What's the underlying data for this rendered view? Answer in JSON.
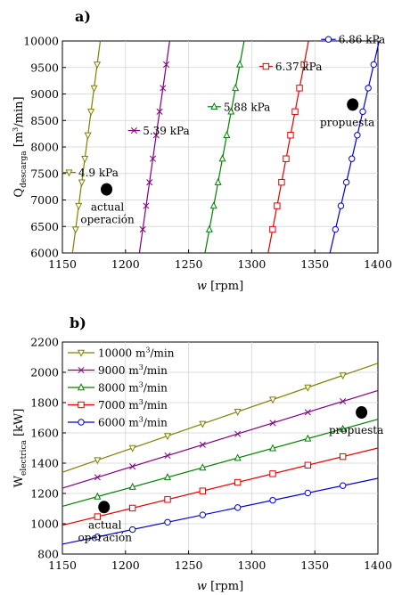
{
  "figure": {
    "panels": [
      "a)",
      "b)"
    ]
  },
  "chart_data": [
    {
      "id": "a",
      "type": "line",
      "panel_label": "a)",
      "xlabel": "w [rpm]",
      "ylabel": "Q_descarga [m³/min]",
      "ylabel_main": "Q",
      "ylabel_sub": "descarga",
      "ylabel_unit": "[m",
      "ylabel_sup": "3",
      "ylabel_unit_end": "/min]",
      "xlim": [
        1150,
        1400
      ],
      "ylim": [
        6000,
        10000
      ],
      "x_ticks": [
        1150,
        1200,
        1250,
        1300,
        1350,
        1400
      ],
      "y_ticks": [
        6000,
        6500,
        7000,
        7500,
        8000,
        8500,
        9000,
        9500,
        10000
      ],
      "grid": true,
      "series": [
        {
          "name": "4.9 kPa",
          "color": "#808000",
          "marker": "triangle-down",
          "x": [
            1158,
            1180
          ],
          "y": [
            6000,
            10000
          ]
        },
        {
          "name": "5.39 kPa",
          "color": "#800080",
          "marker": "x",
          "x": [
            1211,
            1235
          ],
          "y": [
            6000,
            10000
          ]
        },
        {
          "name": "5.88 kPa",
          "color": "#008000",
          "marker": "triangle-up",
          "x": [
            1263,
            1294
          ],
          "y": [
            6000,
            10000
          ]
        },
        {
          "name": "6.37 kPa",
          "color": "#e00000",
          "marker": "square",
          "x": [
            1313,
            1345
          ],
          "y": [
            6000,
            10000
          ]
        },
        {
          "name": "6.86 kPa",
          "color": "#0000cc",
          "marker": "circle",
          "x": [
            1362,
            1401
          ],
          "y": [
            6000,
            10000
          ]
        }
      ],
      "legend_labels": [
        {
          "text": "4.9 kPa",
          "series": 0,
          "x": 1162,
          "y": 7520,
          "line_to": 1150
        },
        {
          "text": "5.39 kPa",
          "series": 1,
          "x": 1213,
          "y": 8310,
          "line_to": 1202
        },
        {
          "text": "5.88 kPa",
          "series": 2,
          "x": 1277,
          "y": 8760,
          "line_to": 1265
        },
        {
          "text": "6.37 kPa",
          "series": 3,
          "x": 1318,
          "y": 9520,
          "line_to": 1306
        },
        {
          "text": "6.86 kPa",
          "series": 4,
          "x": 1368,
          "y": 10030,
          "line_to": 1355
        }
      ],
      "points": [
        {
          "label": "actual operación",
          "x": 1185,
          "y": 7200
        },
        {
          "label": "propuesta",
          "x": 1380,
          "y": 8800
        }
      ]
    },
    {
      "id": "b",
      "type": "line",
      "panel_label": "b)",
      "xlabel": "w [rpm]",
      "ylabel": "W_electrica [kW]",
      "ylabel_main": "W",
      "ylabel_sub": "electrica",
      "ylabel_unit": "[kW]",
      "xlim": [
        1150,
        1400
      ],
      "ylim": [
        800,
        2200
      ],
      "x_ticks": [
        1150,
        1200,
        1250,
        1300,
        1350,
        1400
      ],
      "y_ticks": [
        800,
        1000,
        1200,
        1400,
        1600,
        1800,
        2000,
        2200
      ],
      "grid": true,
      "legend_position": "top-left",
      "series": [
        {
          "name": "10000 m³/min",
          "name_main": "10000 m",
          "name_sup": "3",
          "name_end": "/min",
          "color": "#808000",
          "marker": "triangle-down",
          "x": [
            1150,
            1400
          ],
          "y": [
            1340,
            2060
          ]
        },
        {
          "name": "9000 m³/min",
          "name_main": "9000 m",
          "name_sup": "3",
          "name_end": "/min",
          "color": "#800080",
          "marker": "x",
          "x": [
            1150,
            1400
          ],
          "y": [
            1235,
            1880
          ]
        },
        {
          "name": "8000 m³/min",
          "name_main": "8000 m",
          "name_sup": "3",
          "name_end": "/min",
          "color": "#008000",
          "marker": "triangle-up",
          "x": [
            1150,
            1400
          ],
          "y": [
            1115,
            1690
          ]
        },
        {
          "name": "7000 m³/min",
          "name_main": "7000 m",
          "name_sup": "3",
          "name_end": "/min",
          "color": "#e00000",
          "marker": "square",
          "x": [
            1150,
            1400
          ],
          "y": [
            990,
            1500
          ]
        },
        {
          "name": "6000 m³/min",
          "name_main": "6000 m",
          "name_sup": "3",
          "name_end": "/min",
          "color": "#0000cc",
          "marker": "circle",
          "x": [
            1150,
            1400
          ],
          "y": [
            865,
            1300
          ]
        }
      ],
      "points": [
        {
          "label": "actual operación",
          "x": 1183,
          "y": 1110
        },
        {
          "label": "propuesta",
          "x": 1387,
          "y": 1735
        }
      ]
    }
  ]
}
